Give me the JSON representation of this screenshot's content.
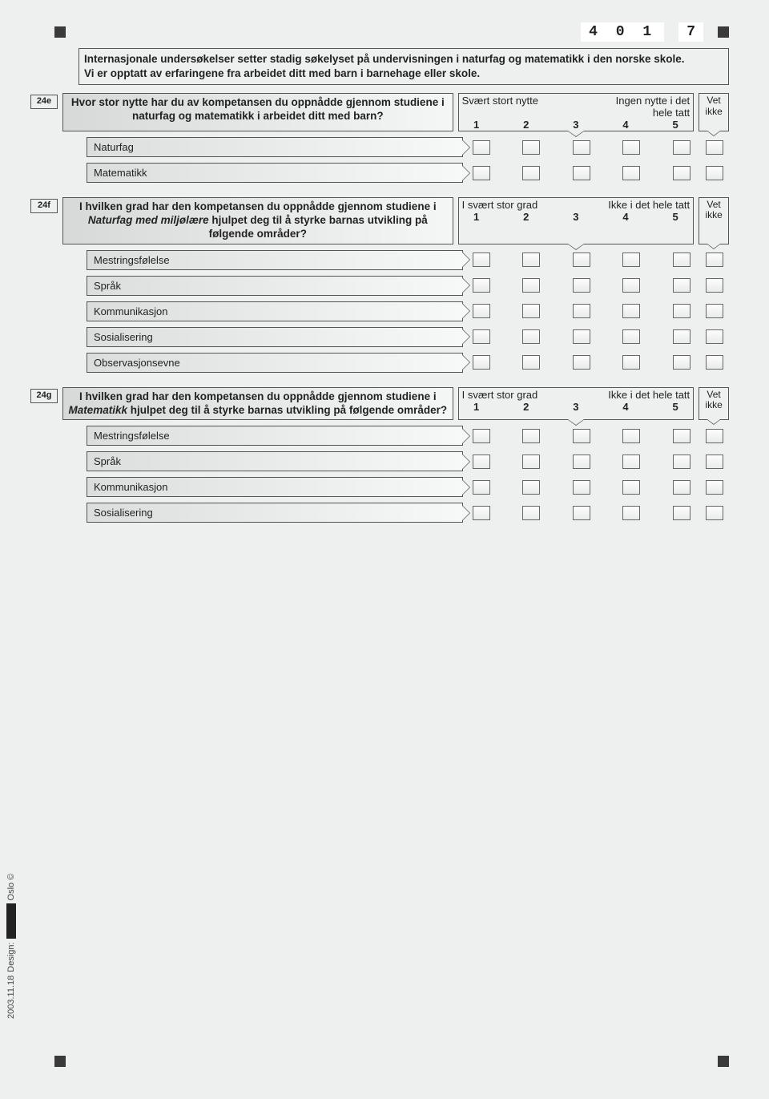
{
  "header": {
    "code": "4 0 1",
    "page": "7"
  },
  "intro_line1": "Internasjonale undersøkelser setter stadig søkelyset på undervisningen i naturfag og matematikk i den norske skole.",
  "intro_line2": "Vi er opptatt av erfaringene fra arbeidet ditt med barn i barnehage eller skole.",
  "scale_numbers": [
    "1",
    "2",
    "3",
    "4",
    "5"
  ],
  "vet_ikke": "Vet ikke",
  "q24e": {
    "num": "24e",
    "text": "Hvor stor nytte har du av kompetansen du oppnådde gjennom studiene i naturfag og matematikk i arbeidet ditt med barn?",
    "scale_left": "Svært stort nytte",
    "scale_right": "Ingen nytte i det hele tatt",
    "items": [
      "Naturfag",
      "Matematikk"
    ]
  },
  "q24f": {
    "num": "24f",
    "text_1": "I hvilken grad har den kompetansen du oppnådde gjennom studiene i ",
    "text_em": "Naturfag med miljølære",
    "text_2": " hjulpet deg til å styrke barnas utvikling på følgende områder?",
    "scale_left": "I svært stor grad",
    "scale_right": "Ikke i det hele tatt",
    "items": [
      "Mestringsfølelse",
      "Språk",
      "Kommunikasjon",
      "Sosialisering",
      "Observasjonsevne"
    ]
  },
  "q24g": {
    "num": "24g",
    "text_1": "I hvilken grad har den kompetansen du oppnådde gjennom studiene i ",
    "text_em": "Matematikk",
    "text_2": " hjulpet deg til å styrke barnas utvikling på følgende områder?",
    "scale_left": "I svært stor grad",
    "scale_right": "Ikke i det hele tatt",
    "items": [
      "Mestringsfølelse",
      "Språk",
      "Kommunikasjon",
      "Sosialisering"
    ]
  },
  "footer": {
    "date": "2003.11.18",
    "design_label": "Design:",
    "city": "Oslo ©"
  },
  "colors": {
    "page_bg": "#eef0f0",
    "border": "#555555",
    "gradient_from": "#dcdede",
    "gradient_to": "#f7f8f8",
    "marker": "#3a3a3a"
  }
}
